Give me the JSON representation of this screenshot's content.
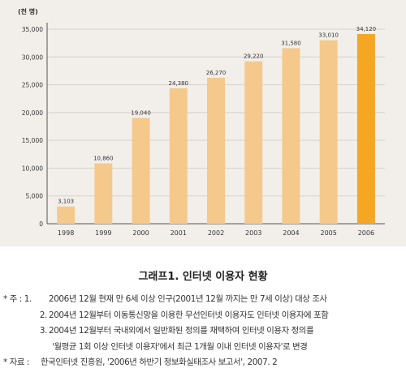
{
  "chart_data": {
    "type": "bar",
    "unit_label": "(천 명)",
    "categories": [
      "1998",
      "1999",
      "2000",
      "2001",
      "2002",
      "2003",
      "2004",
      "2005",
      "2006"
    ],
    "values": [
      3103,
      10860,
      19040,
      24380,
      26270,
      29220,
      31580,
      33010,
      34120
    ],
    "value_labels": [
      "3,103",
      "10,860",
      "19,040",
      "24,380",
      "26,270",
      "29,220",
      "31,580",
      "33,010",
      "34,120"
    ],
    "ylim": [
      0,
      35000
    ],
    "yticks": [
      0,
      5000,
      10000,
      15000,
      20000,
      25000,
      30000,
      35000
    ],
    "ytick_labels": [
      "0",
      "5,000",
      "10,000",
      "15,000",
      "20,000",
      "25,000",
      "30,000",
      "35,000"
    ],
    "grid": true,
    "colors": {
      "bar": "#f5c98c",
      "highlight_bar": "#f5a623",
      "grid": "#d5d1cb",
      "panel": "#f2efeb"
    },
    "highlight_index": 8
  },
  "caption": "그래프1. 인터넷 이용자 현황",
  "notes": [
    {
      "prefix": "* 주 : 1.",
      "text": "2006년 12월 현재 만 6세 이상 인구(2001년 12월 까지는 만 7세 이상) 대상 조사"
    },
    {
      "prefix": "2.",
      "text": "2004년 12월부터 이동통신망을 이용한 무선인터넷 이용자도 인터넷 이용자에 포함"
    },
    {
      "prefix": "3.",
      "text": "2004년 12월부터 국내외에서 일반화된 정의를 채택하여 인터넷 이용자 정의를"
    },
    {
      "prefix": "",
      "text": "'월평균 1회 이상 인터넷 이용자'에서 최근 1개월 이내 인터넷 이용자'로 변경"
    },
    {
      "prefix": "* 자료 :",
      "text": "한국인터넷 진흥원, '2006년 하반기 정보화실태조사 보고서', 2007. 2"
    }
  ]
}
